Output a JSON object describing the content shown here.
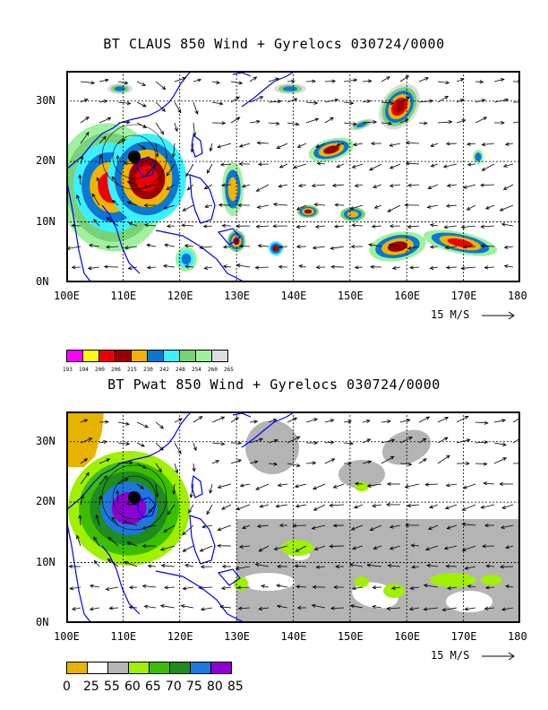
{
  "panel1": {
    "title": "BT CLAUS 850 Wind + Gyrelocs 030724/0000",
    "lat_labels": [
      "30N",
      "20N",
      "10N",
      "0N"
    ],
    "lon_labels": [
      "100E",
      "110E",
      "120E",
      "130E",
      "140E",
      "150E",
      "160E",
      "170E",
      "180"
    ],
    "scale_label": "15 M/S",
    "legend": {
      "colors": [
        "#ff00ff",
        "#ffff00",
        "#ee0000",
        "#990000",
        "#eeb400",
        "#0a78d2",
        "#3cf0ff",
        "#78d278",
        "#a0f0a0",
        "#dcdcdc"
      ],
      "labels": [
        "193",
        "194",
        "200",
        "206",
        "215",
        "230",
        "242",
        "248",
        "254",
        "260",
        "265"
      ]
    }
  },
  "panel2": {
    "title": "BT Pwat 850 Wind + Gyrelocs 030724/0000",
    "lat_labels": [
      "30N",
      "20N",
      "10N",
      "0N"
    ],
    "lon_labels": [
      "100E",
      "110E",
      "120E",
      "130E",
      "140E",
      "150E",
      "160E",
      "170E",
      "180"
    ],
    "scale_label": "15 M/S",
    "legend": {
      "colors": [
        "#e6b400",
        "#ffffff",
        "#b4b4b4",
        "#a0f000",
        "#3cbe00",
        "#1e8c1e",
        "#1e78dc",
        "#8c00d2"
      ],
      "labels": [
        "0",
        "25",
        "55",
        "60",
        "65",
        "70",
        "75",
        "80",
        "85"
      ]
    }
  },
  "map_colors": {
    "coast": "#0000ff",
    "frame": "#000000"
  }
}
